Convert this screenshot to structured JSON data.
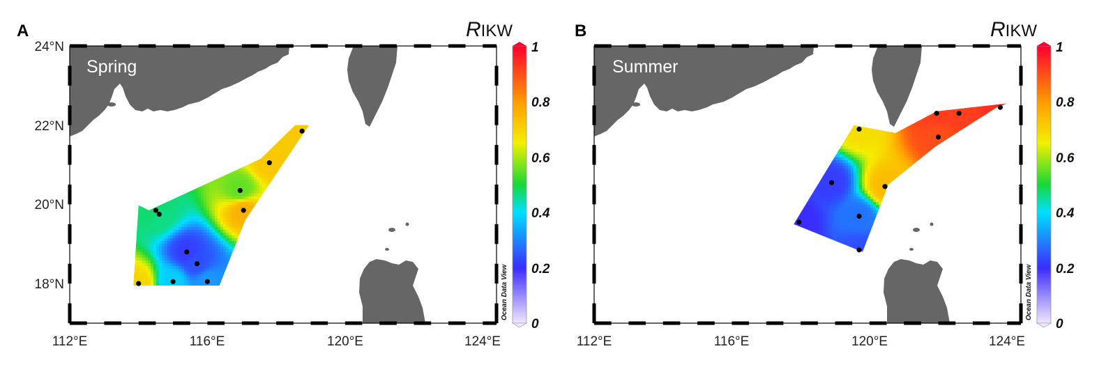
{
  "panels": [
    {
      "letter": "A",
      "season": "Spring",
      "stations": [
        [
          118.75,
          21.85
        ],
        [
          117.8,
          21.05
        ],
        [
          116.95,
          20.35
        ],
        [
          117.05,
          19.85
        ],
        [
          114.5,
          19.85
        ],
        [
          114.6,
          19.75
        ],
        [
          115.4,
          18.8
        ],
        [
          115.7,
          18.5
        ],
        [
          114.0,
          18.0
        ],
        [
          115.0,
          18.05
        ],
        [
          116.0,
          18.05
        ]
      ],
      "polygon": [
        [
          114.0,
          19.98
        ],
        [
          114.3,
          19.85
        ],
        [
          117.55,
          21.15
        ],
        [
          118.55,
          22.0
        ],
        [
          118.95,
          22.0
        ],
        [
          117.1,
          19.6
        ],
        [
          116.35,
          17.95
        ],
        [
          113.85,
          17.95
        ]
      ],
      "field": [
        [
          118.75,
          21.85,
          0.72
        ],
        [
          117.8,
          21.05,
          0.72
        ],
        [
          116.95,
          20.35,
          0.55
        ],
        [
          117.05,
          19.85,
          0.76
        ],
        [
          114.5,
          19.85,
          0.48
        ],
        [
          114.6,
          19.75,
          0.46
        ],
        [
          115.4,
          18.8,
          0.22
        ],
        [
          115.7,
          18.5,
          0.24
        ],
        [
          114.0,
          18.0,
          0.7
        ],
        [
          115.0,
          18.05,
          0.38
        ],
        [
          116.0,
          18.05,
          0.32
        ]
      ]
    },
    {
      "letter": "B",
      "season": "Summer",
      "stations": [
        [
          119.7,
          21.9
        ],
        [
          121.95,
          22.3
        ],
        [
          122.6,
          22.3
        ],
        [
          123.8,
          22.45
        ],
        [
          122.0,
          21.7
        ],
        [
          118.9,
          20.55
        ],
        [
          120.45,
          20.45
        ],
        [
          119.7,
          19.7
        ],
        [
          117.95,
          19.55
        ],
        [
          119.7,
          18.85
        ]
      ],
      "polygon": [
        [
          119.55,
          22.0
        ],
        [
          120.75,
          21.8
        ],
        [
          121.95,
          22.35
        ],
        [
          124.0,
          22.55
        ],
        [
          123.7,
          22.45
        ],
        [
          121.9,
          21.45
        ],
        [
          120.55,
          20.5
        ],
        [
          119.8,
          18.8
        ],
        [
          117.8,
          19.5
        ]
      ],
      "field": [
        [
          119.7,
          21.9,
          0.68
        ],
        [
          121.95,
          22.3,
          0.92
        ],
        [
          122.6,
          22.3,
          0.92
        ],
        [
          123.8,
          22.45,
          0.94
        ],
        [
          122.0,
          21.7,
          0.9
        ],
        [
          118.9,
          20.55,
          0.22
        ],
        [
          120.45,
          20.45,
          0.74
        ],
        [
          119.7,
          19.7,
          0.28
        ],
        [
          117.95,
          19.55,
          0.2
        ],
        [
          119.7,
          18.85,
          0.24
        ]
      ]
    }
  ],
  "axes": {
    "lon_range": [
      112,
      124.4
    ],
    "lat_range": [
      17,
      24
    ],
    "x_ticks": [
      "112°E",
      "116°E",
      "120°E",
      "124°E"
    ],
    "y_ticks": [
      "24°N",
      "22°N",
      "20°N",
      "18°N"
    ]
  },
  "colorbar": {
    "title_main": "R",
    "title_sub": "IKW",
    "range": [
      0,
      1
    ],
    "labels": [
      "1",
      "0.8",
      "0.6",
      "0.4",
      "0.2",
      "0"
    ],
    "watermark": "Ocean Data View",
    "colors": [
      "#f0e8ff",
      "#3b2bff",
      "#00e0ff",
      "#18d838",
      "#f4f000",
      "#ff9a00",
      "#ff0030"
    ]
  },
  "colors": {
    "land": "#666666",
    "station": "#000000"
  }
}
